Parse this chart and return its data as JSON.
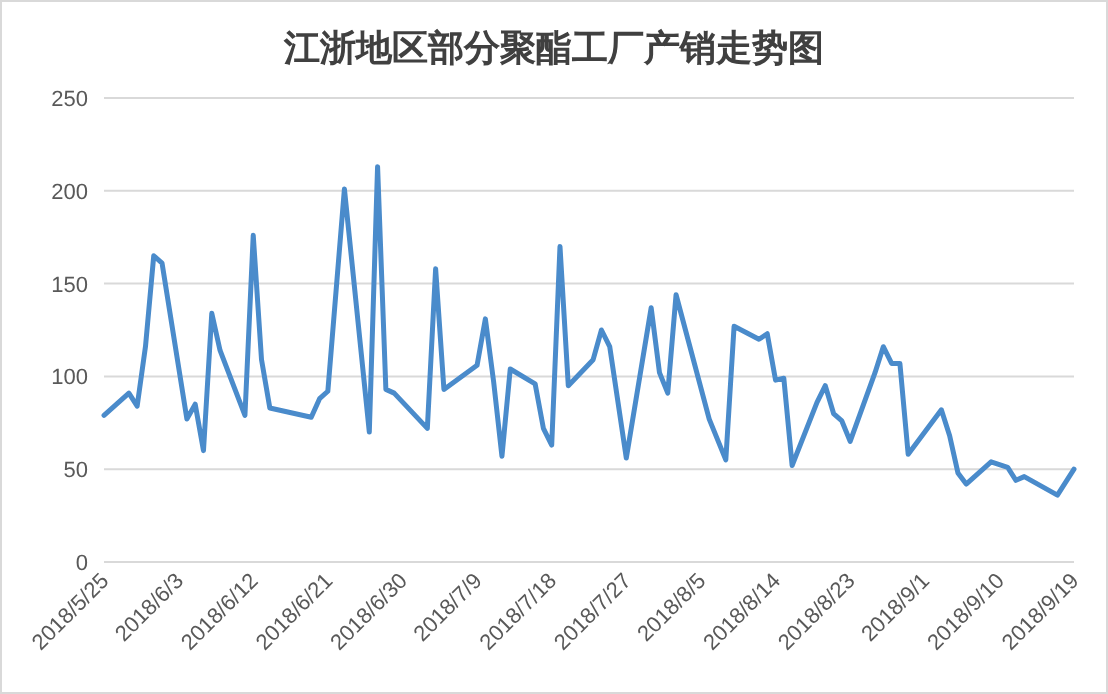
{
  "chart_data": {
    "type": "line",
    "title": "江浙地区部分聚酯工厂产销走势图",
    "x": [
      "2018-05-25",
      "2018-05-28",
      "2018-05-29",
      "2018-05-30",
      "2018-05-31",
      "2018-06-01",
      "2018-06-04",
      "2018-06-05",
      "2018-06-06",
      "2018-06-07",
      "2018-06-08",
      "2018-06-11",
      "2018-06-12",
      "2018-06-13",
      "2018-06-14",
      "2018-06-19",
      "2018-06-20",
      "2018-06-21",
      "2018-06-23",
      "2018-06-26",
      "2018-06-27",
      "2018-06-28",
      "2018-06-29",
      "2018-07-03",
      "2018-07-04",
      "2018-07-05",
      "2018-07-09",
      "2018-07-10",
      "2018-07-11",
      "2018-07-12",
      "2018-07-13",
      "2018-07-16",
      "2018-07-17",
      "2018-07-18",
      "2018-07-19",
      "2018-07-20",
      "2018-07-23",
      "2018-07-24",
      "2018-07-25",
      "2018-07-27",
      "2018-07-30",
      "2018-07-31",
      "2018-08-01",
      "2018-08-02",
      "2018-08-06",
      "2018-08-08",
      "2018-08-09",
      "2018-08-12",
      "2018-08-13",
      "2018-08-14",
      "2018-08-15",
      "2018-08-16",
      "2018-08-19",
      "2018-08-20",
      "2018-08-21",
      "2018-08-22",
      "2018-08-23",
      "2018-08-26",
      "2018-08-27",
      "2018-08-28",
      "2018-08-29",
      "2018-08-30",
      "2018-09-03",
      "2018-09-04",
      "2018-09-05",
      "2018-09-06",
      "2018-09-09",
      "2018-09-11",
      "2018-09-12",
      "2018-09-13",
      "2018-09-17",
      "2018-09-19"
    ],
    "series": [
      {
        "color": "#4a8bcb",
        "values": [
          79,
          91,
          84,
          116,
          165,
          161,
          77,
          85,
          60,
          134,
          114,
          79,
          176,
          109,
          83,
          78,
          88,
          92,
          201,
          70,
          213,
          93,
          91,
          72,
          158,
          93,
          106,
          131,
          97,
          57,
          104,
          96,
          72,
          63,
          170,
          95,
          109,
          125,
          116,
          56,
          137,
          102,
          91,
          144,
          77,
          55,
          127,
          120,
          123,
          98,
          99,
          52,
          86,
          95,
          80,
          76,
          65,
          102,
          116,
          107,
          107,
          58,
          82,
          68,
          48,
          42,
          54,
          51,
          44,
          46,
          36,
          50
        ]
      }
    ],
    "ylim": [
      0,
      250
    ],
    "yticks": [
      0,
      50,
      100,
      150,
      200,
      250
    ],
    "xlim": [
      "2018-05-25",
      "2018-09-19"
    ],
    "xticks": [
      {
        "value": "2018-05-25",
        "label": "2018/5/25"
      },
      {
        "value": "2018-06-03",
        "label": "2018/6/3"
      },
      {
        "value": "2018-06-12",
        "label": "2018/6/12"
      },
      {
        "value": "2018-06-21",
        "label": "2018/6/21"
      },
      {
        "value": "2018-06-30",
        "label": "2018/6/30"
      },
      {
        "value": "2018-07-09",
        "label": "2018/7/9"
      },
      {
        "value": "2018-07-18",
        "label": "2018/7/18"
      },
      {
        "value": "2018-07-27",
        "label": "2018/7/27"
      },
      {
        "value": "2018-08-05",
        "label": "2018/8/5"
      },
      {
        "value": "2018-08-14",
        "label": "2018/8/14"
      },
      {
        "value": "2018-08-23",
        "label": "2018/8/23"
      },
      {
        "value": "2018-09-01",
        "label": "2018/9/1"
      },
      {
        "value": "2018-09-10",
        "label": "2018/9/10"
      },
      {
        "value": "2018-09-19",
        "label": "2018/9/19"
      }
    ],
    "grid": "y"
  }
}
